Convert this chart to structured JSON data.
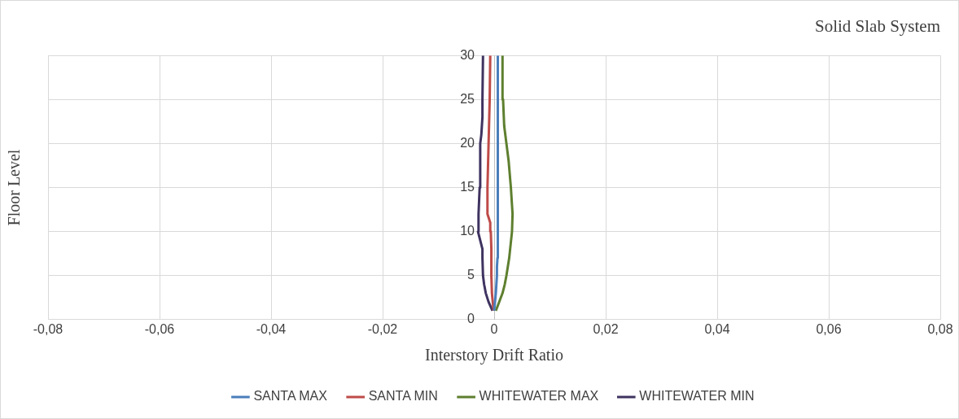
{
  "chart_data": {
    "type": "line",
    "title": "Solid Slab System",
    "xlabel": "Interstory Drift Ratio",
    "ylabel": "Floor Level",
    "xlim": [
      -0.08,
      0.08
    ],
    "xticks": [
      {
        "value": -0.08,
        "label": "-0,08"
      },
      {
        "value": -0.06,
        "label": "-0,06"
      },
      {
        "value": -0.04,
        "label": "-0,04"
      },
      {
        "value": -0.02,
        "label": "-0,02"
      },
      {
        "value": 0,
        "label": "0"
      },
      {
        "value": 0.02,
        "label": "0,02"
      },
      {
        "value": 0.04,
        "label": "0,04"
      },
      {
        "value": 0.06,
        "label": "0,06"
      },
      {
        "value": 0.08,
        "label": "0,08"
      }
    ],
    "ylim": [
      0,
      30
    ],
    "yticks": [
      0,
      5,
      10,
      15,
      20,
      25,
      30
    ],
    "grid": true,
    "legend": "bottom",
    "marker": "none",
    "line_style": "solid",
    "series": [
      {
        "name": "SANTA MAX",
        "color": "#4a7ebb",
        "x": [
          0,
          0.0003,
          0.0005,
          0.0005,
          0.0006,
          0.0007,
          0.0007,
          0.0007,
          0.0006,
          0.0006
        ],
        "values": [
          1,
          3,
          5,
          6,
          7,
          10,
          15,
          20,
          25,
          30
        ]
      },
      {
        "name": "SANTA MIN",
        "color": "#be4b48",
        "x": [
          -0.0001,
          -0.0004,
          -0.0005,
          -0.0005,
          -0.0006,
          -0.0007,
          -0.0012,
          -0.0012,
          -0.001,
          -0.0008,
          -0.0007
        ],
        "values": [
          1,
          3,
          5,
          8,
          10,
          11,
          12,
          15,
          20,
          25,
          30
        ]
      },
      {
        "name": "WHITEWATER MAX",
        "color": "#5e7f2f",
        "x": [
          0.0003,
          0.0009,
          0.0015,
          0.0019,
          0.0022,
          0.0027,
          0.0032,
          0.0033,
          0.003,
          0.0026,
          0.0022,
          0.0018,
          0.0016,
          0.0015
        ],
        "values": [
          1,
          2,
          3,
          4,
          5,
          7,
          10,
          12,
          15,
          18,
          20,
          22,
          25,
          30
        ]
      },
      {
        "name": "WHITEWATER MIN",
        "color": "#3f3360",
        "x": [
          -0.0003,
          -0.001,
          -0.0015,
          -0.0018,
          -0.002,
          -0.0021,
          -0.0021,
          -0.0025,
          -0.0029,
          -0.0028,
          -0.0026,
          -0.0025,
          -0.0023,
          -0.0021,
          -0.0021,
          -0.002
        ],
        "values": [
          1,
          2,
          3,
          4,
          5,
          7,
          8,
          9,
          10,
          12,
          15,
          20,
          21,
          23,
          25,
          30
        ]
      }
    ]
  }
}
